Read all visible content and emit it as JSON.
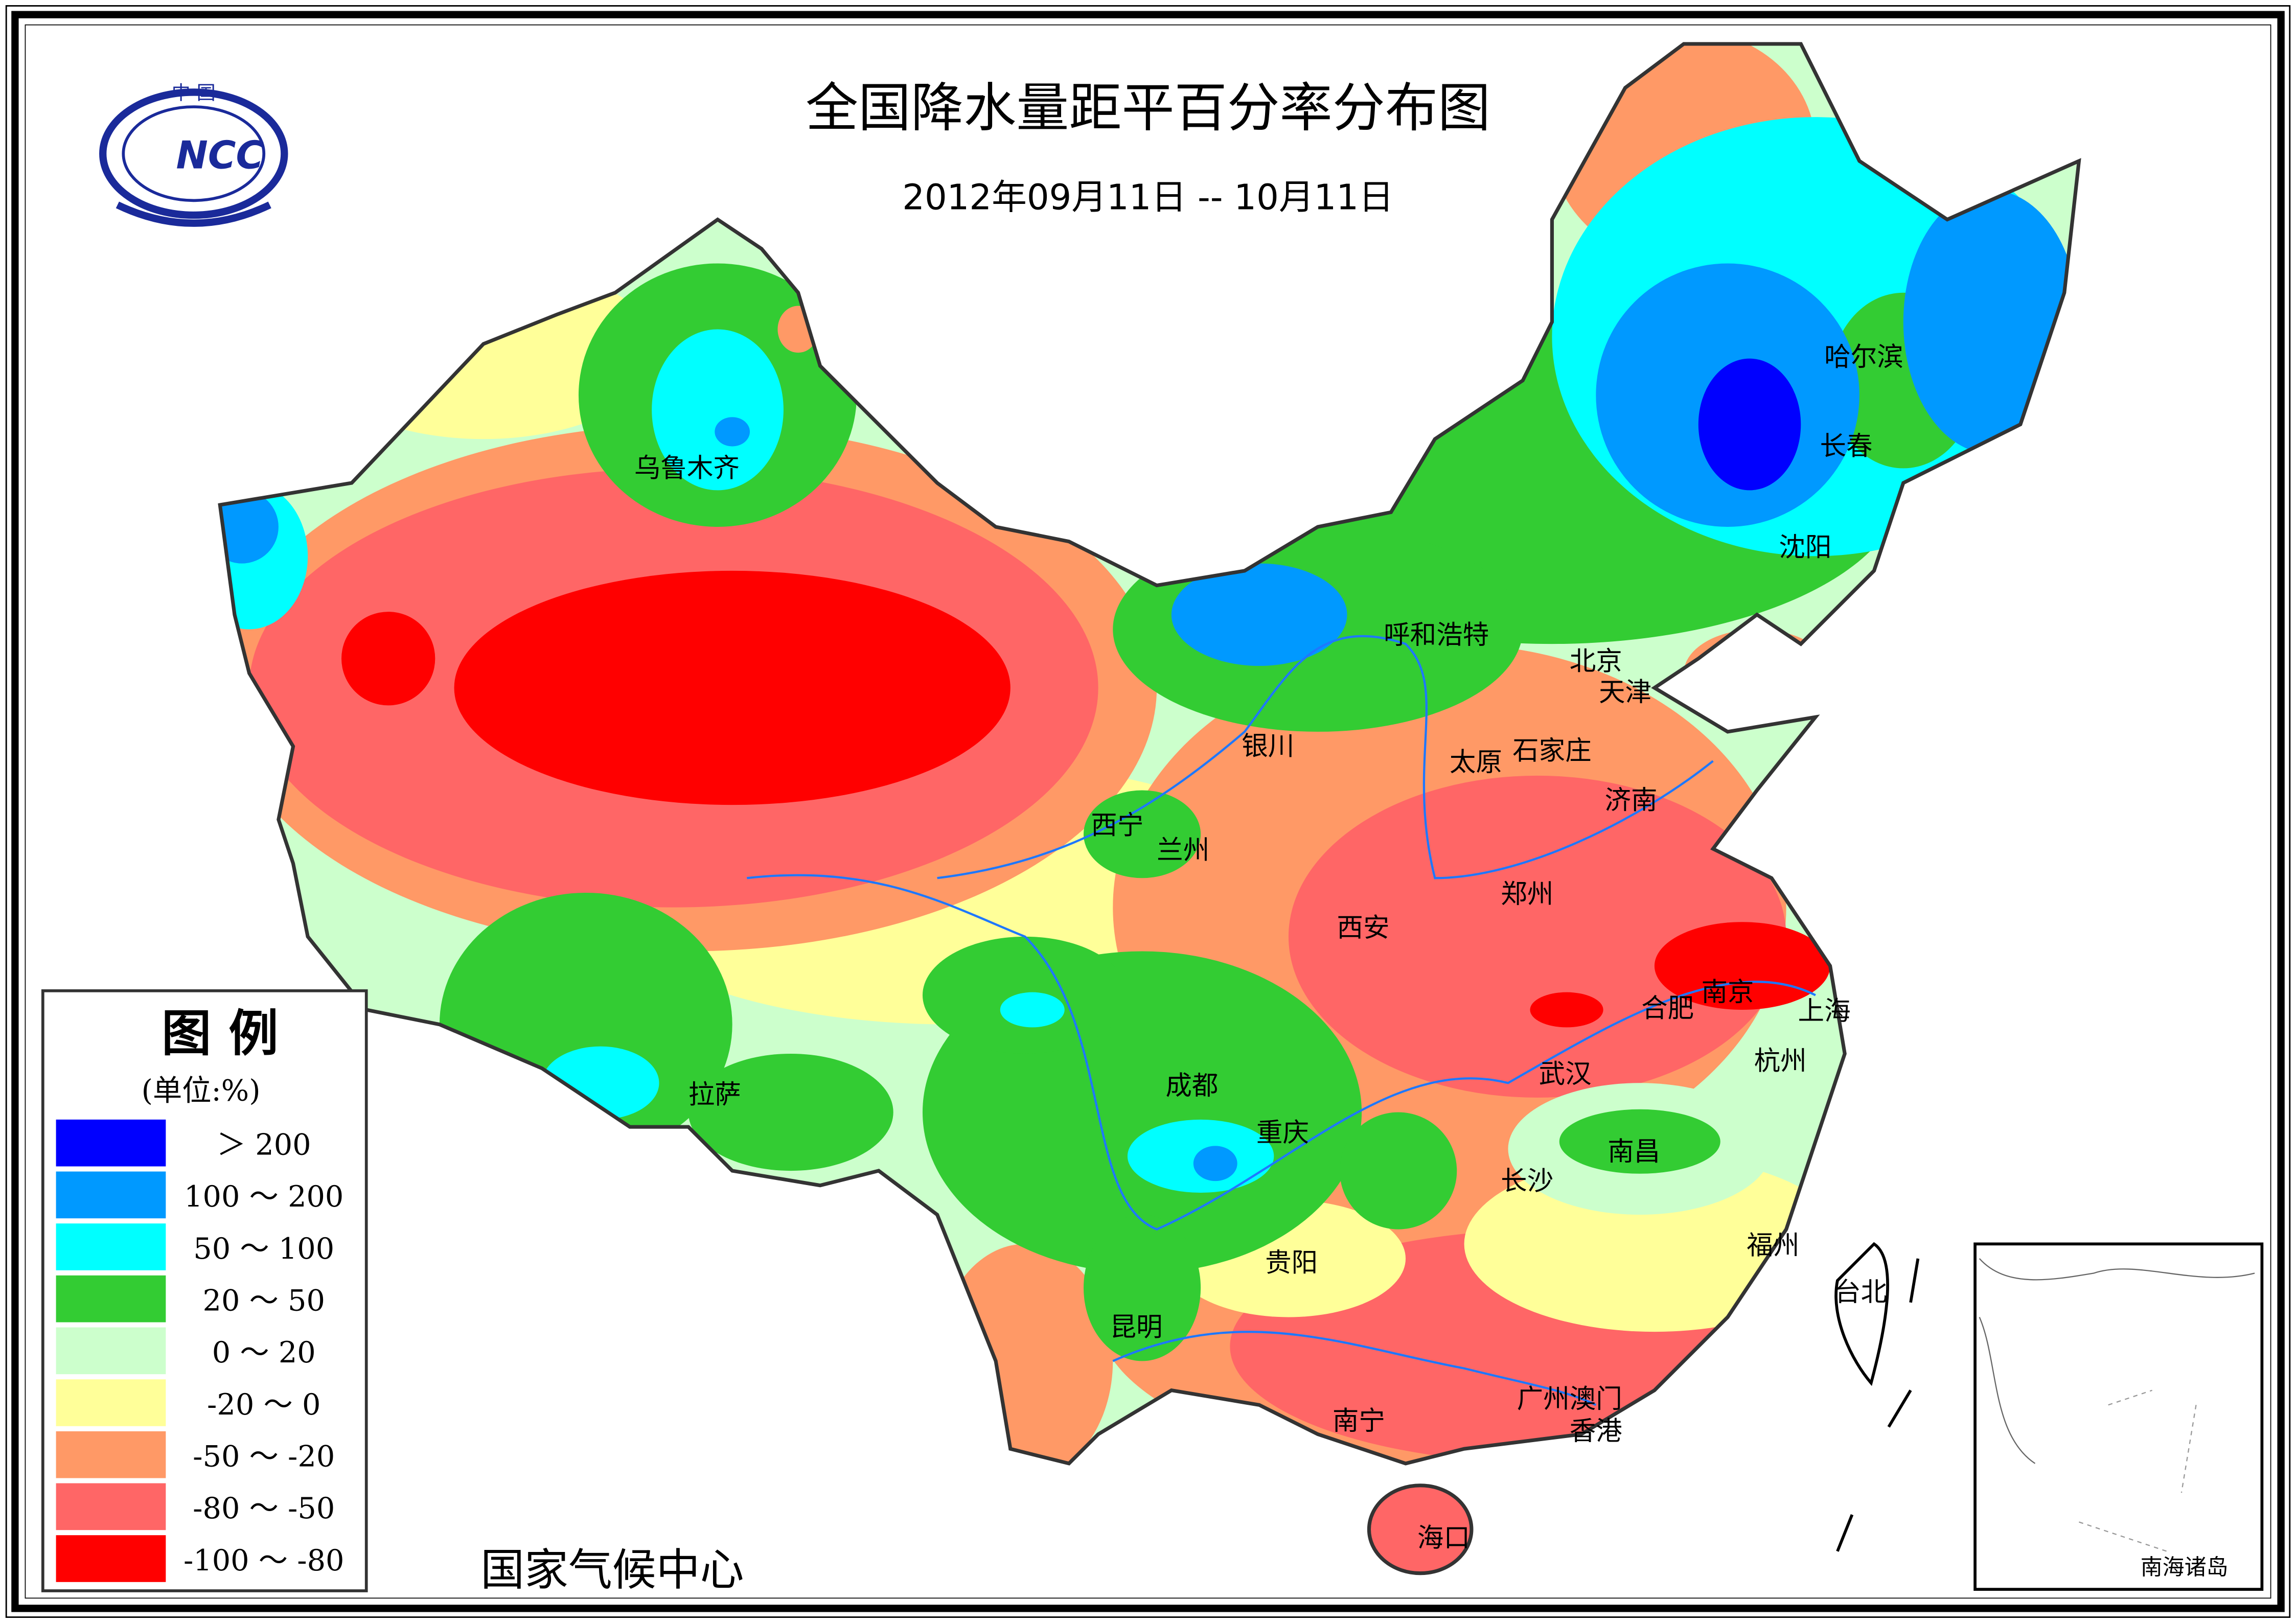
{
  "header": {
    "title": "全国降水量距平百分率分布图",
    "date_range": "2012年09月11日 -- 10月11日"
  },
  "logo": {
    "top_text": "中 国",
    "center_text": "NCC"
  },
  "legend": {
    "title": "图  例",
    "unit": "(单位:%)",
    "items": [
      {
        "label": "＞ 200",
        "color": "#0000ff"
      },
      {
        "label": "100 ～ 200",
        "color": "#0099ff"
      },
      {
        "label": "50 ～ 100",
        "color": "#00ffff"
      },
      {
        "label": "20 ～ 50",
        "color": "#33cc33"
      },
      {
        "label": "0 ～ 20",
        "color": "#ccffcc"
      },
      {
        "label": "-20 ～ 0",
        "color": "#ffff99"
      },
      {
        "label": "-50 ～ -20",
        "color": "#ff9966"
      },
      {
        "label": "-80 ～ -50",
        "color": "#ff6666"
      },
      {
        "label": "-100 ～ -80",
        "color": "#ff0000"
      }
    ]
  },
  "footer": {
    "agency": "国家气候中心"
  },
  "inset": {
    "label": "南海诸岛"
  },
  "cities": [
    "乌鲁木齐",
    "哈尔滨",
    "长春",
    "沈阳",
    "呼和浩特",
    "北京",
    "天津",
    "银川",
    "太原",
    "石家庄",
    "济南",
    "西宁",
    "兰州",
    "郑州",
    "西安",
    "合肥",
    "南京",
    "上海",
    "拉萨",
    "成都",
    "武汉",
    "杭州",
    "重庆",
    "南昌",
    "长沙",
    "福州",
    "台北",
    "贵阳",
    "昆明",
    "广州",
    "澳门",
    "香港",
    "南宁",
    "海口"
  ]
}
